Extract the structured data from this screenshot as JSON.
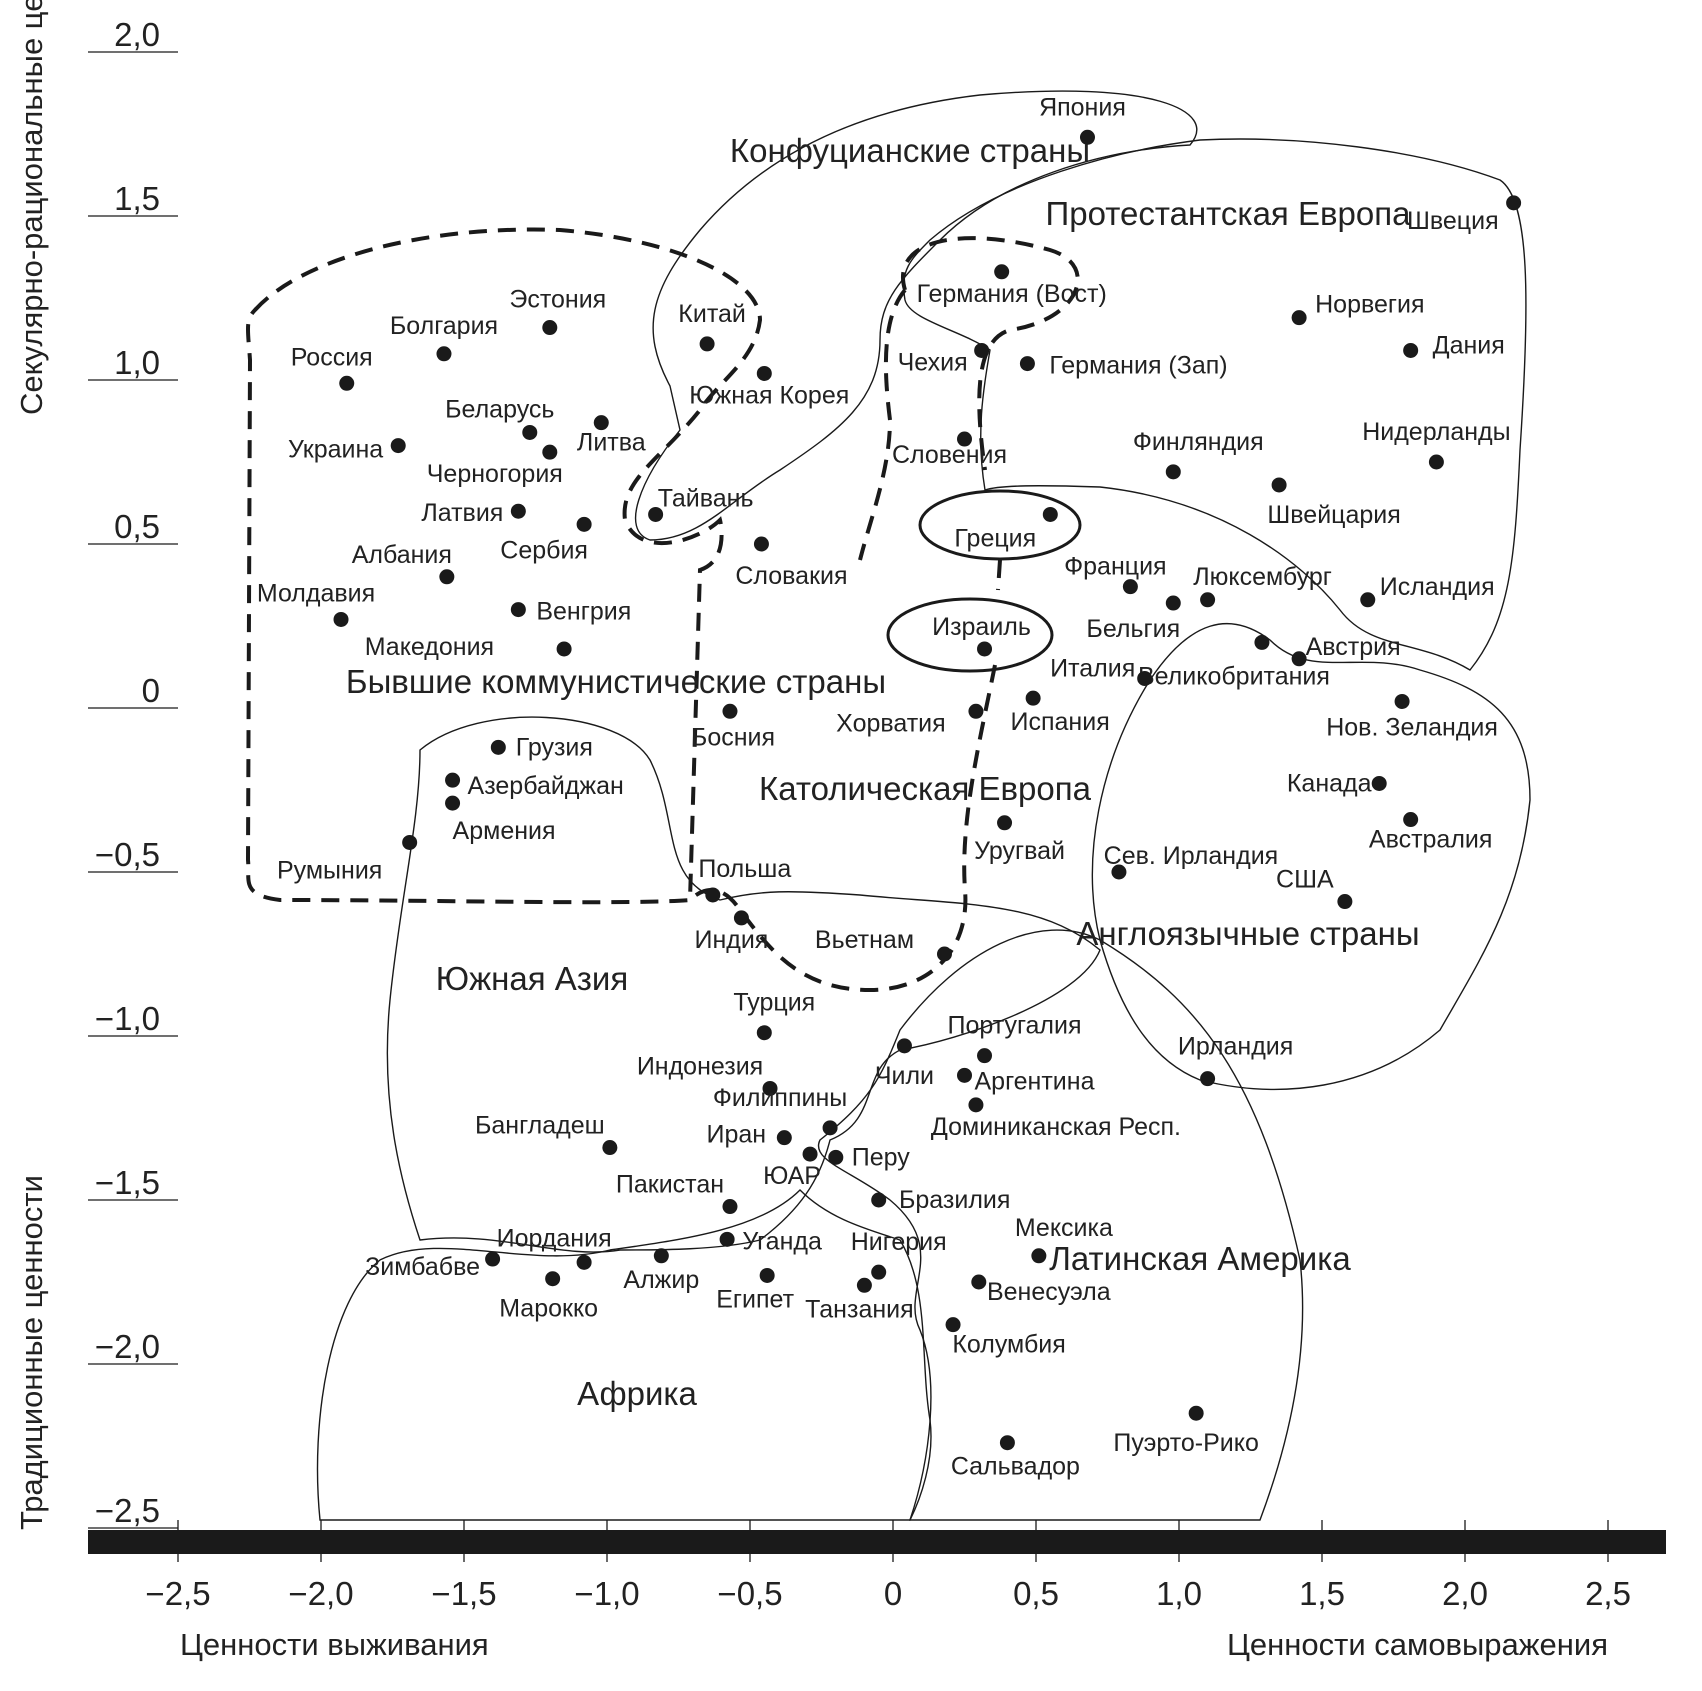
{
  "chart_data": {
    "type": "scatter",
    "axes": {
      "x_label_left": "Ценности выживания",
      "x_label_right": "Ценности самовыражения",
      "y_label_top": "Секулярно-рациональные ценности",
      "y_label_bottom": "Традиционные ценности",
      "xlim": [
        -2.5,
        2.5
      ],
      "ylim": [
        -2.5,
        2.0
      ],
      "x_ticks": [
        "−2,5",
        "−2,0",
        "−1,5",
        "−1,0",
        "−0,5",
        "0",
        "0,5",
        "1,0",
        "1,5",
        "2,0",
        "2,5"
      ],
      "x_tick_values": [
        -2.5,
        -2.0,
        -1.5,
        -1.0,
        -0.5,
        0,
        0.5,
        1.0,
        1.5,
        2.0,
        2.5
      ],
      "y_ticks": [
        "2,0",
        "1,5",
        "1,0",
        "0,5",
        "0",
        "−0,5",
        "−1,0",
        "−1,5",
        "−2,0",
        "−2,5"
      ],
      "y_tick_values": [
        2.0,
        1.5,
        1.0,
        0.5,
        0,
        -0.5,
        -1.0,
        -1.5,
        -2.0,
        -2.5
      ]
    },
    "groups": [
      {
        "name": "Конфуцианские страны",
        "style": "solid"
      },
      {
        "name": "Протестантская Европа",
        "style": "solid"
      },
      {
        "name": "Бывшие коммунистические страны",
        "style": "dashed"
      },
      {
        "name": "Католическая Европа",
        "style": "dashed"
      },
      {
        "name": "Англоязычные страны",
        "style": "solid"
      },
      {
        "name": "Южная Азия",
        "style": "solid"
      },
      {
        "name": "Латинская Америка",
        "style": "solid"
      },
      {
        "name": "Африка",
        "style": "solid"
      }
    ],
    "points": [
      {
        "label": "Япония",
        "x": 0.68,
        "y": 1.74
      },
      {
        "label": "Швеция",
        "x": 2.17,
        "y": 1.54
      },
      {
        "label": "Германия (Вост)",
        "x": 0.38,
        "y": 1.33
      },
      {
        "label": "Норвегия",
        "x": 1.42,
        "y": 1.19
      },
      {
        "label": "Дания",
        "x": 1.81,
        "y": 1.09
      },
      {
        "label": "Чехия",
        "x": 0.31,
        "y": 1.09
      },
      {
        "label": "Германия (Зап)",
        "x": 0.47,
        "y": 1.05
      },
      {
        "label": "Китай",
        "x": -0.65,
        "y": 1.11
      },
      {
        "label": "Эстония",
        "x": -1.2,
        "y": 1.16
      },
      {
        "label": "Болгария",
        "x": -1.57,
        "y": 1.08
      },
      {
        "label": "Россия",
        "x": -1.91,
        "y": 0.99
      },
      {
        "label": "Южная Корея",
        "x": -0.45,
        "y": 1.02
      },
      {
        "label": "Беларусь",
        "x": -1.27,
        "y": 0.84
      },
      {
        "label": "Литва",
        "x": -1.02,
        "y": 0.87
      },
      {
        "label": "Украина",
        "x": -1.73,
        "y": 0.8
      },
      {
        "label": "Черногория",
        "x": -1.2,
        "y": 0.78
      },
      {
        "label": "Словения",
        "x": 0.25,
        "y": 0.82
      },
      {
        "label": "Финляндия",
        "x": 0.98,
        "y": 0.72
      },
      {
        "label": "Нидерланды",
        "x": 1.9,
        "y": 0.75
      },
      {
        "label": "Швейцария",
        "x": 1.35,
        "y": 0.68
      },
      {
        "label": "Тайвань",
        "x": -0.83,
        "y": 0.59
      },
      {
        "label": "Латвия",
        "x": -1.31,
        "y": 0.6
      },
      {
        "label": "Сербия",
        "x": -1.08,
        "y": 0.56
      },
      {
        "label": "Греция",
        "x": 0.55,
        "y": 0.59
      },
      {
        "label": "Словакия",
        "x": -0.46,
        "y": 0.5
      },
      {
        "label": "Албания",
        "x": -1.56,
        "y": 0.4
      },
      {
        "label": "Франция",
        "x": 0.83,
        "y": 0.37
      },
      {
        "label": "Люксембург",
        "x": 1.1,
        "y": 0.33
      },
      {
        "label": "Бельгия",
        "x": 0.98,
        "y": 0.32
      },
      {
        "label": "Исландия",
        "x": 1.66,
        "y": 0.33
      },
      {
        "label": "Венгрия",
        "x": -1.31,
        "y": 0.3
      },
      {
        "label": "Молдавия",
        "x": -1.93,
        "y": 0.27
      },
      {
        "label": "Великобритания",
        "x": 1.29,
        "y": 0.2
      },
      {
        "label": "Израиль",
        "x": 0.32,
        "y": 0.18
      },
      {
        "label": "Македония",
        "x": -1.15,
        "y": 0.18
      },
      {
        "label": "Австрия",
        "x": 1.42,
        "y": 0.15
      },
      {
        "label": "Италия",
        "x": 0.88,
        "y": 0.09
      },
      {
        "label": "Нов. Зеландия",
        "x": 1.78,
        "y": 0.02
      },
      {
        "label": "Испания",
        "x": 0.49,
        "y": 0.03
      },
      {
        "label": "Хорватия",
        "x": 0.29,
        "y": -0.01
      },
      {
        "label": "Босния",
        "x": -0.57,
        "y": -0.01
      },
      {
        "label": "Грузия",
        "x": -1.38,
        "y": -0.12
      },
      {
        "label": "Азербайджан",
        "x": -1.54,
        "y": -0.22
      },
      {
        "label": "Армения",
        "x": -1.54,
        "y": -0.29
      },
      {
        "label": "Канада",
        "x": 1.7,
        "y": -0.23
      },
      {
        "label": "Уругвай",
        "x": 0.39,
        "y": -0.35
      },
      {
        "label": "Австралия",
        "x": 1.81,
        "y": -0.34
      },
      {
        "label": "Румыния",
        "x": -1.69,
        "y": -0.41
      },
      {
        "label": "Сев. Ирландия",
        "x": 0.79,
        "y": -0.5
      },
      {
        "label": "Польша",
        "x": -0.63,
        "y": -0.57
      },
      {
        "label": "США",
        "x": 1.58,
        "y": -0.59
      },
      {
        "label": "Индия",
        "x": -0.53,
        "y": -0.64
      },
      {
        "label": "Вьетнам",
        "x": 0.18,
        "y": -0.75
      },
      {
        "label": "Турция",
        "x": -0.45,
        "y": -0.99
      },
      {
        "label": "Чили",
        "x": 0.04,
        "y": -1.03
      },
      {
        "label": "Португалия",
        "x": 0.32,
        "y": -1.06
      },
      {
        "label": "Ирландия",
        "x": 1.1,
        "y": -1.13
      },
      {
        "label": "Аргентина",
        "x": 0.25,
        "y": -1.12
      },
      {
        "label": "Индонезия",
        "x": -0.43,
        "y": -1.16
      },
      {
        "label": "Доминиканская Респ.",
        "x": 0.29,
        "y": -1.21
      },
      {
        "label": "Филиппины",
        "x": -0.22,
        "y": -1.28
      },
      {
        "label": "Иран",
        "x": -0.38,
        "y": -1.31
      },
      {
        "label": "Бангладеш",
        "x": -0.99,
        "y": -1.34
      },
      {
        "label": "ЮАР",
        "x": -0.29,
        "y": -1.36
      },
      {
        "label": "Перу",
        "x": -0.2,
        "y": -1.37
      },
      {
        "label": "Бразилия",
        "x": -0.05,
        "y": -1.5
      },
      {
        "label": "Пакистан",
        "x": -0.57,
        "y": -1.52
      },
      {
        "label": "Уганда",
        "x": -0.58,
        "y": -1.62
      },
      {
        "label": "Мексика",
        "x": 0.51,
        "y": -1.67
      },
      {
        "label": "Зимбабве",
        "x": -1.4,
        "y": -1.68
      },
      {
        "label": "Иордания",
        "x": -1.08,
        "y": -1.69
      },
      {
        "label": "Алжир",
        "x": -0.81,
        "y": -1.67
      },
      {
        "label": "Нигерия",
        "x": -0.05,
        "y": -1.72
      },
      {
        "label": "Марокко",
        "x": -1.19,
        "y": -1.74
      },
      {
        "label": "Египет",
        "x": -0.44,
        "y": -1.73
      },
      {
        "label": "Венесуэла",
        "x": 0.3,
        "y": -1.75
      },
      {
        "label": "Танзания",
        "x": -0.1,
        "y": -1.76
      },
      {
        "label": "Колумбия",
        "x": 0.21,
        "y": -1.88
      },
      {
        "label": "Пуэрто-Рико",
        "x": 1.06,
        "y": -2.15
      },
      {
        "label": "Сальвадор",
        "x": 0.4,
        "y": -2.24
      }
    ]
  }
}
